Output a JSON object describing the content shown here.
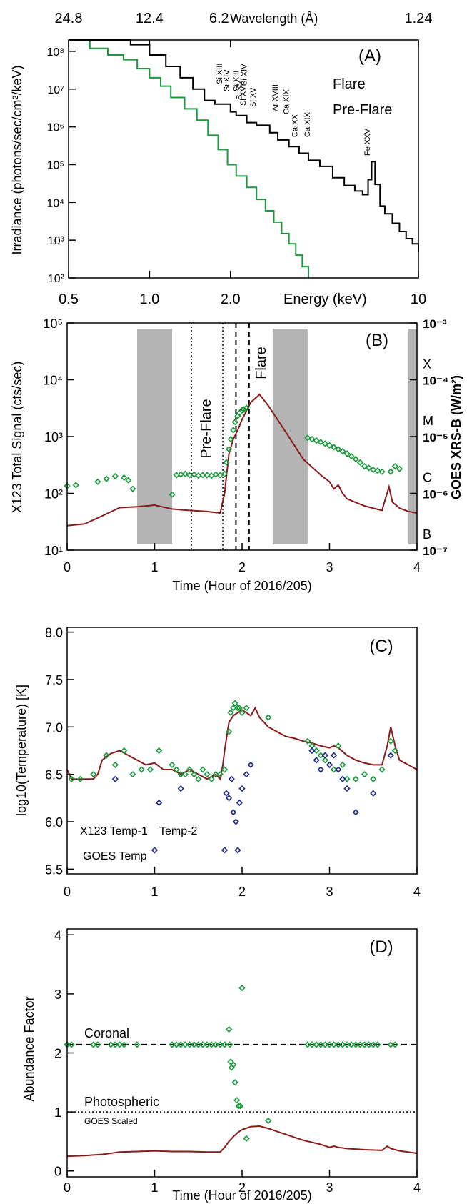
{
  "colors": {
    "flare": "#000000",
    "preflare": "#1a9a3c",
    "goes": "#8b1a1a",
    "temp2": "#1f2a8a",
    "shade": "#b4b4b4"
  },
  "chart_data": [
    {
      "panel": "A",
      "type": "line",
      "top_axis_title": "Wavelength (Å)",
      "top_ticks": [
        "24.8",
        "12.4",
        "6.2",
        "1.24"
      ],
      "xlabel": "Energy (keV)",
      "ylabel": "Irradiance (photons/sec/cm²/keV)",
      "x_scale": "log",
      "y_scale": "log",
      "xlim": [
        0.5,
        10
      ],
      "ylim": [
        100.0,
        200000000.0
      ],
      "x_ticks": [
        "0.5",
        "1.0",
        "2.0",
        "10"
      ],
      "y_ticks": [
        "10⁸",
        "10⁷",
        "10⁶",
        "10⁵",
        "10⁴",
        "10³",
        "10²"
      ],
      "legend": [
        "Flare",
        "Pre-Flare"
      ],
      "lines": [
        {
          "text": "Si XIII",
          "x": 1.86
        },
        {
          "text": "Si XIV",
          "x": 1.98
        },
        {
          "text": "Si XIII",
          "x": 2.15
        },
        {
          "text": "Si XIV",
          "x": 2.3
        },
        {
          "text": "Si XV",
          "x": 2.2
        },
        {
          "text": "Si XVI",
          "x": 2.28
        },
        {
          "text": "Si XV",
          "x": 2.48
        },
        {
          "text": "Ar XVIII",
          "x": 3.0
        },
        {
          "text": "Ca XIX",
          "x": 3.3
        },
        {
          "text": "Ca XX",
          "x": 3.55
        },
        {
          "text": "Ca XIX",
          "x": 3.95
        },
        {
          "text": "Fe XXV",
          "x": 6.6
        }
      ],
      "series": [
        {
          "name": "Flare",
          "x": [
            0.5,
            0.6,
            0.72,
            0.85,
            1.0,
            1.15,
            1.3,
            1.45,
            1.6,
            1.75,
            1.9,
            2.0,
            2.1,
            2.3,
            2.5,
            2.8,
            3.0,
            3.3,
            3.6,
            3.9,
            4.3,
            4.8,
            5.3,
            5.8,
            6.2,
            6.5,
            6.7,
            6.9,
            7.2,
            7.5,
            8.0,
            8.5,
            9.0,
            9.5,
            10.0
          ],
          "y": [
            200000000.0,
            200000000.0,
            200000000.0,
            150000000.0,
            80000000.0,
            40000000.0,
            20000000.0,
            10000000.0,
            5000000.0,
            4000000.0,
            4000000.0,
            2500000.0,
            2000000.0,
            1300000.0,
            1100000.0,
            700000.0,
            450000.0,
            300000.0,
            200000.0,
            130000.0,
            90000.0,
            45000.0,
            28000.0,
            20000.0,
            16000.0,
            40000.0,
            120000.0,
            30000.0,
            8000.0,
            5000.0,
            2800.0,
            1700.0,
            1100.0,
            800.0,
            500.0
          ]
        },
        {
          "name": "Pre-Flare",
          "x": [
            0.5,
            0.6,
            0.7,
            0.8,
            0.9,
            1.0,
            1.1,
            1.2,
            1.35,
            1.5,
            1.65,
            1.8,
            1.95,
            2.1,
            2.3,
            2.5,
            2.7,
            2.9,
            3.1,
            3.3,
            3.5,
            3.7,
            3.9
          ],
          "y": [
            200000000.0,
            120000000.0,
            80000000.0,
            60000000.0,
            35000000.0,
            20000000.0,
            12000000.0,
            6000000.0,
            3000000.0,
            1500000.0,
            600000.0,
            250000.0,
            100000.0,
            50000.0,
            25000.0,
            12000.0,
            6000.0,
            3000.0,
            1500.0,
            800.0,
            400.0,
            200.0,
            100.0
          ]
        }
      ]
    },
    {
      "panel": "B",
      "type": "line",
      "xlabel": "Time (Hour of 2016/205)",
      "ylabel": "X123 Total Signal (cts/sec)",
      "ylabel_right": "GOES XRS-B (W/m²)",
      "xlim": [
        0,
        4
      ],
      "ylim": [
        10,
        100000
      ],
      "y_scale": "log",
      "y_ticks": [
        "10¹",
        "10²",
        "10³",
        "10⁴",
        "10⁵"
      ],
      "x_ticks": [
        "0",
        "1",
        "2",
        "3",
        "4"
      ],
      "right_ticks": [
        "10⁻⁷",
        "10⁻⁶",
        "10⁻⁵",
        "10⁻⁴",
        "10⁻³"
      ],
      "goes_classes": [
        "B",
        "C",
        "M",
        "X"
      ],
      "shaded": [
        [
          0.8,
          1.2
        ],
        [
          2.35,
          2.75
        ],
        [
          3.9,
          4.0
        ]
      ],
      "preflare_lines": [
        1.42,
        1.78
      ],
      "flare_lines": [
        1.93,
        2.08
      ],
      "annotations": [
        "Pre-Flare",
        "Flare"
      ],
      "series": [
        {
          "name": "X123",
          "type": "scatter",
          "x": [
            0.0,
            0.1,
            0.35,
            0.45,
            0.55,
            0.65,
            0.7,
            0.75,
            1.2,
            1.25,
            1.3,
            1.35,
            1.4,
            1.45,
            1.5,
            1.55,
            1.6,
            1.65,
            1.7,
            1.75,
            1.8,
            1.82,
            1.85,
            1.87,
            1.9,
            1.92,
            1.95,
            1.97,
            2.0,
            2.02,
            2.05,
            2.75,
            2.8,
            2.85,
            2.9,
            2.95,
            3.0,
            3.05,
            3.1,
            3.15,
            3.2,
            3.25,
            3.3,
            3.35,
            3.4,
            3.45,
            3.5,
            3.55,
            3.6,
            3.7,
            3.75,
            3.8
          ],
          "y": [
            135,
            140,
            160,
            180,
            200,
            190,
            170,
            120,
            95,
            210,
            215,
            220,
            210,
            215,
            205,
            210,
            210,
            205,
            215,
            210,
            220,
            350,
            600,
            900,
            1300,
            1800,
            2300,
            2600,
            2900,
            3000,
            3200,
            950,
            900,
            850,
            800,
            750,
            700,
            650,
            600,
            550,
            500,
            450,
            400,
            350,
            300,
            280,
            260,
            250,
            240,
            240,
            300,
            270
          ]
        },
        {
          "name": "GOES XRS-B",
          "x": [
            0,
            0.2,
            0.4,
            0.6,
            0.8,
            1.0,
            1.2,
            1.4,
            1.6,
            1.75,
            1.8,
            1.85,
            1.9,
            1.95,
            2.0,
            2.1,
            2.2,
            2.3,
            2.5,
            2.7,
            2.9,
            3.0,
            3.05,
            3.1,
            3.15,
            3.2,
            3.4,
            3.6,
            3.68,
            3.72,
            3.8,
            3.9,
            4.0
          ],
          "y": [
            2.7e-07,
            2.9e-07,
            4e-07,
            5.6e-07,
            5.8e-07,
            6.2e-07,
            5.3e-07,
            5e-07,
            4.8e-07,
            4.5e-07,
            1e-06,
            5e-06,
            9e-06,
            1.3e-05,
            2e-05,
            4e-05,
            5.5e-05,
            3.5e-05,
            1.2e-05,
            4e-06,
            2.1e-06,
            1.6e-06,
            1.2e-06,
            1.4e-06,
            1e-06,
            8e-07,
            6e-07,
            5e-07,
            1.3e-06,
            7e-07,
            5.5e-07,
            4.8e-07,
            4.5e-07
          ]
        }
      ]
    },
    {
      "panel": "C",
      "type": "line",
      "xlabel": "",
      "ylabel": "log10(Temperature) [K]",
      "xlim": [
        0,
        4
      ],
      "ylim": [
        5.45,
        8.05
      ],
      "y_ticks": [
        "8.0",
        "7.5",
        "7.0",
        "6.5",
        "6.0",
        "5.5"
      ],
      "x_ticks": [
        "0",
        "1",
        "2",
        "3",
        "4"
      ],
      "legend": [
        "X123 Temp-1",
        "Temp-2",
        "GOES Temp"
      ],
      "series": [
        {
          "name": "X123 Temp-1",
          "type": "scatter",
          "x": [
            0.05,
            0.15,
            0.3,
            0.45,
            0.55,
            0.65,
            0.75,
            0.85,
            0.95,
            1.05,
            1.2,
            1.25,
            1.3,
            1.35,
            1.4,
            1.45,
            1.5,
            1.55,
            1.6,
            1.65,
            1.7,
            1.75,
            1.8,
            1.85,
            1.87,
            1.9,
            1.92,
            1.95,
            1.97,
            2.0,
            2.05,
            2.3,
            2.75,
            2.8,
            2.85,
            2.9,
            2.95,
            3.0,
            3.05,
            3.1,
            3.15,
            3.2,
            3.3,
            3.4,
            3.5,
            3.6,
            3.7,
            3.75
          ],
          "y": [
            6.45,
            6.45,
            6.5,
            6.7,
            6.6,
            6.75,
            6.5,
            6.55,
            6.55,
            6.75,
            6.6,
            6.55,
            6.5,
            6.5,
            6.55,
            6.5,
            6.45,
            6.55,
            6.5,
            6.45,
            6.5,
            6.5,
            6.55,
            6.95,
            7.15,
            7.2,
            7.25,
            7.2,
            7.2,
            7.15,
            7.2,
            7.1,
            6.85,
            6.8,
            6.75,
            6.7,
            6.65,
            6.6,
            6.55,
            6.8,
            6.6,
            6.45,
            6.45,
            6.5,
            6.45,
            6.55,
            6.85,
            6.75
          ]
        },
        {
          "name": "Temp-2",
          "type": "scatter",
          "x": [
            0.55,
            1.0,
            1.05,
            1.3,
            1.8,
            1.82,
            1.85,
            1.88,
            1.9,
            1.93,
            1.95,
            1.97,
            2.0,
            2.05,
            2.1,
            2.8,
            2.85,
            2.9,
            2.95,
            3.0,
            3.05,
            3.1,
            3.15,
            3.2,
            3.3,
            3.5,
            3.7
          ],
          "y": [
            6.45,
            5.7,
            6.2,
            6.35,
            5.7,
            6.3,
            6.25,
            6.45,
            6.1,
            6.0,
            5.7,
            6.2,
            6.35,
            6.5,
            6.6,
            6.75,
            6.65,
            6.55,
            6.7,
            6.6,
            6.7,
            6.55,
            6.45,
            6.35,
            6.1,
            6.3,
            6.7
          ]
        },
        {
          "name": "GOES Temp",
          "x": [
            0,
            0.05,
            0.1,
            0.2,
            0.3,
            0.35,
            0.4,
            0.5,
            0.6,
            0.7,
            0.8,
            0.9,
            1.0,
            1.1,
            1.2,
            1.3,
            1.4,
            1.5,
            1.6,
            1.7,
            1.75,
            1.78,
            1.8,
            1.85,
            1.9,
            1.95,
            2.0,
            2.1,
            2.15,
            2.2,
            2.3,
            2.4,
            2.5,
            2.6,
            2.7,
            2.8,
            2.9,
            3.0,
            3.05,
            3.1,
            3.2,
            3.3,
            3.4,
            3.5,
            3.6,
            3.66,
            3.7,
            3.75,
            3.8,
            3.9,
            4.0
          ],
          "y": [
            6.55,
            6.45,
            6.45,
            6.45,
            6.45,
            6.5,
            6.65,
            6.72,
            6.75,
            6.7,
            6.65,
            6.6,
            6.62,
            6.55,
            6.55,
            6.5,
            6.55,
            6.5,
            6.45,
            6.5,
            6.45,
            6.6,
            6.75,
            7.05,
            7.12,
            7.15,
            7.18,
            7.12,
            7.2,
            7.1,
            7.0,
            6.95,
            6.9,
            6.88,
            6.85,
            6.83,
            6.8,
            6.78,
            6.8,
            6.78,
            6.7,
            6.65,
            6.62,
            6.6,
            6.6,
            6.8,
            7.0,
            6.8,
            6.65,
            6.6,
            6.55
          ]
        }
      ]
    },
    {
      "panel": "D",
      "type": "line",
      "xlabel": "Time (Hour of 2016/205)",
      "ylabel": "Abundance Factor",
      "xlim": [
        0,
        4
      ],
      "ylim": [
        -0.1,
        4.1
      ],
      "y_ticks": [
        "0",
        "1",
        "2",
        "3",
        "4"
      ],
      "x_ticks": [
        "0",
        "1",
        "2",
        "3",
        "4"
      ],
      "coronal": 2.14,
      "photospheric": 1.0,
      "annotations": [
        "Coronal",
        "Photospheric",
        "GOES Scaled"
      ],
      "series": [
        {
          "name": "X123",
          "type": "scatter",
          "x": [
            0.0,
            0.05,
            0.3,
            0.35,
            0.5,
            0.55,
            0.6,
            0.65,
            0.8,
            1.2,
            1.25,
            1.3,
            1.35,
            1.4,
            1.45,
            1.5,
            1.55,
            1.6,
            1.65,
            1.7,
            1.75,
            1.8,
            1.85,
            1.86,
            1.87,
            1.88,
            1.9,
            1.92,
            1.94,
            1.96,
            1.98,
            2.0,
            2.05,
            2.3,
            2.75,
            2.8,
            2.85,
            2.9,
            2.95,
            3.0,
            3.05,
            3.1,
            3.15,
            3.2,
            3.25,
            3.3,
            3.35,
            3.4,
            3.45,
            3.5,
            3.55,
            3.7,
            3.75
          ],
          "y": [
            2.14,
            2.14,
            2.14,
            2.14,
            2.14,
            2.14,
            2.14,
            2.14,
            2.14,
            2.14,
            2.14,
            2.14,
            2.14,
            2.14,
            2.14,
            2.14,
            2.14,
            2.14,
            2.14,
            2.14,
            2.14,
            2.14,
            2.4,
            2.14,
            1.85,
            1.75,
            1.8,
            1.5,
            1.2,
            1.1,
            1.1,
            3.1,
            0.55,
            0.85,
            2.14,
            2.14,
            2.14,
            2.14,
            2.14,
            2.14,
            2.14,
            2.14,
            2.14,
            2.14,
            2.14,
            2.14,
            2.14,
            2.14,
            2.14,
            2.14,
            2.14,
            2.14,
            2.14
          ]
        },
        {
          "name": "GOES Scaled",
          "x": [
            0,
            0.2,
            0.4,
            0.6,
            0.8,
            1.0,
            1.2,
            1.4,
            1.6,
            1.75,
            1.8,
            1.85,
            1.9,
            1.95,
            2.0,
            2.1,
            2.2,
            2.3,
            2.5,
            2.7,
            2.9,
            3.0,
            3.05,
            3.1,
            3.2,
            3.4,
            3.6,
            3.66,
            3.7,
            3.8,
            4.0
          ],
          "y": [
            0.25,
            0.26,
            0.28,
            0.32,
            0.33,
            0.34,
            0.33,
            0.33,
            0.32,
            0.32,
            0.4,
            0.5,
            0.58,
            0.65,
            0.7,
            0.75,
            0.76,
            0.72,
            0.62,
            0.52,
            0.45,
            0.4,
            0.42,
            0.4,
            0.38,
            0.36,
            0.35,
            0.42,
            0.38,
            0.34,
            0.3
          ]
        }
      ]
    }
  ]
}
